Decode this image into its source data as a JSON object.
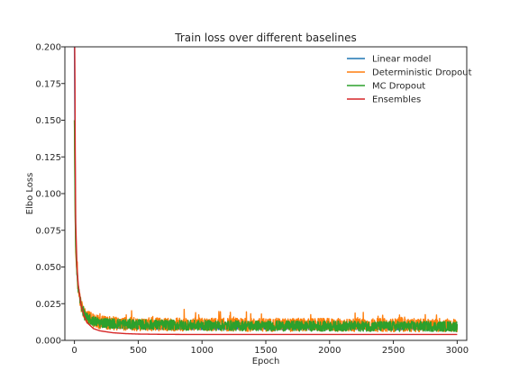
{
  "chart_data": {
    "type": "line",
    "title": "Train loss over different baselines",
    "xlabel": "Epoch",
    "ylabel": "Elbo Loss",
    "xlim": [
      -75,
      3075
    ],
    "ylim": [
      0.0,
      0.2
    ],
    "xticks": [
      0,
      500,
      1000,
      1500,
      2000,
      2500,
      3000
    ],
    "yticks": [
      0.0,
      0.025,
      0.05,
      0.075,
      0.1,
      0.125,
      0.15,
      0.175,
      0.2
    ],
    "xtick_labels": [
      "0",
      "500",
      "1000",
      "1500",
      "2000",
      "2500",
      "3000"
    ],
    "ytick_labels": [
      "0.000",
      "0.025",
      "0.050",
      "0.075",
      "0.100",
      "0.125",
      "0.150",
      "0.175",
      "0.200"
    ],
    "grid": false,
    "legend_position": "top-right",
    "series": [
      {
        "name": "Linear model",
        "color": "#1f77b4",
        "x": [
          0,
          5,
          10,
          20,
          30,
          50,
          75,
          100,
          150,
          200,
          300,
          400,
          500,
          700,
          1000,
          1500,
          2000,
          2500,
          3000
        ],
        "y": [
          0.2,
          0.12,
          0.07,
          0.045,
          0.035,
          0.026,
          0.02,
          0.016,
          0.012,
          0.0105,
          0.0095,
          0.009,
          0.0088,
          0.0086,
          0.0085,
          0.0085,
          0.0084,
          0.0084,
          0.0084
        ]
      },
      {
        "name": "Deterministic Dropout",
        "color": "#ff7f0e",
        "x": [
          0,
          5,
          10,
          20,
          30,
          50,
          75,
          100,
          150,
          200,
          300,
          500,
          1000,
          1500,
          2000,
          2500,
          3000
        ],
        "y": [
          0.15,
          0.1,
          0.06,
          0.045,
          0.035,
          0.025,
          0.019,
          0.016,
          0.0135,
          0.0125,
          0.0115,
          0.011,
          0.0108,
          0.0106,
          0.0105,
          0.0104,
          0.0103
        ]
      },
      {
        "name": "MC Dropout",
        "color": "#2ca02c",
        "x": [
          0,
          5,
          10,
          20,
          30,
          50,
          75,
          100,
          150,
          200,
          300,
          500,
          1000,
          1500,
          2000,
          2500,
          3000
        ],
        "y": [
          0.15,
          0.09,
          0.065,
          0.045,
          0.035,
          0.025,
          0.018,
          0.015,
          0.013,
          0.0122,
          0.0115,
          0.0108,
          0.0102,
          0.0099,
          0.0097,
          0.0096,
          0.0095
        ]
      },
      {
        "name": "Ensembles",
        "color": "#d62728",
        "x": [
          0,
          3,
          6,
          10,
          20,
          30,
          50,
          75,
          100,
          150,
          200,
          300,
          400,
          500,
          700,
          1000,
          1500,
          2000,
          2500,
          3000
        ],
        "y": [
          0.2,
          0.2,
          0.13,
          0.08,
          0.05,
          0.038,
          0.025,
          0.017,
          0.012,
          0.008,
          0.0065,
          0.0052,
          0.0046,
          0.0043,
          0.0041,
          0.004,
          0.004,
          0.004,
          0.004,
          0.004
        ]
      }
    ]
  }
}
